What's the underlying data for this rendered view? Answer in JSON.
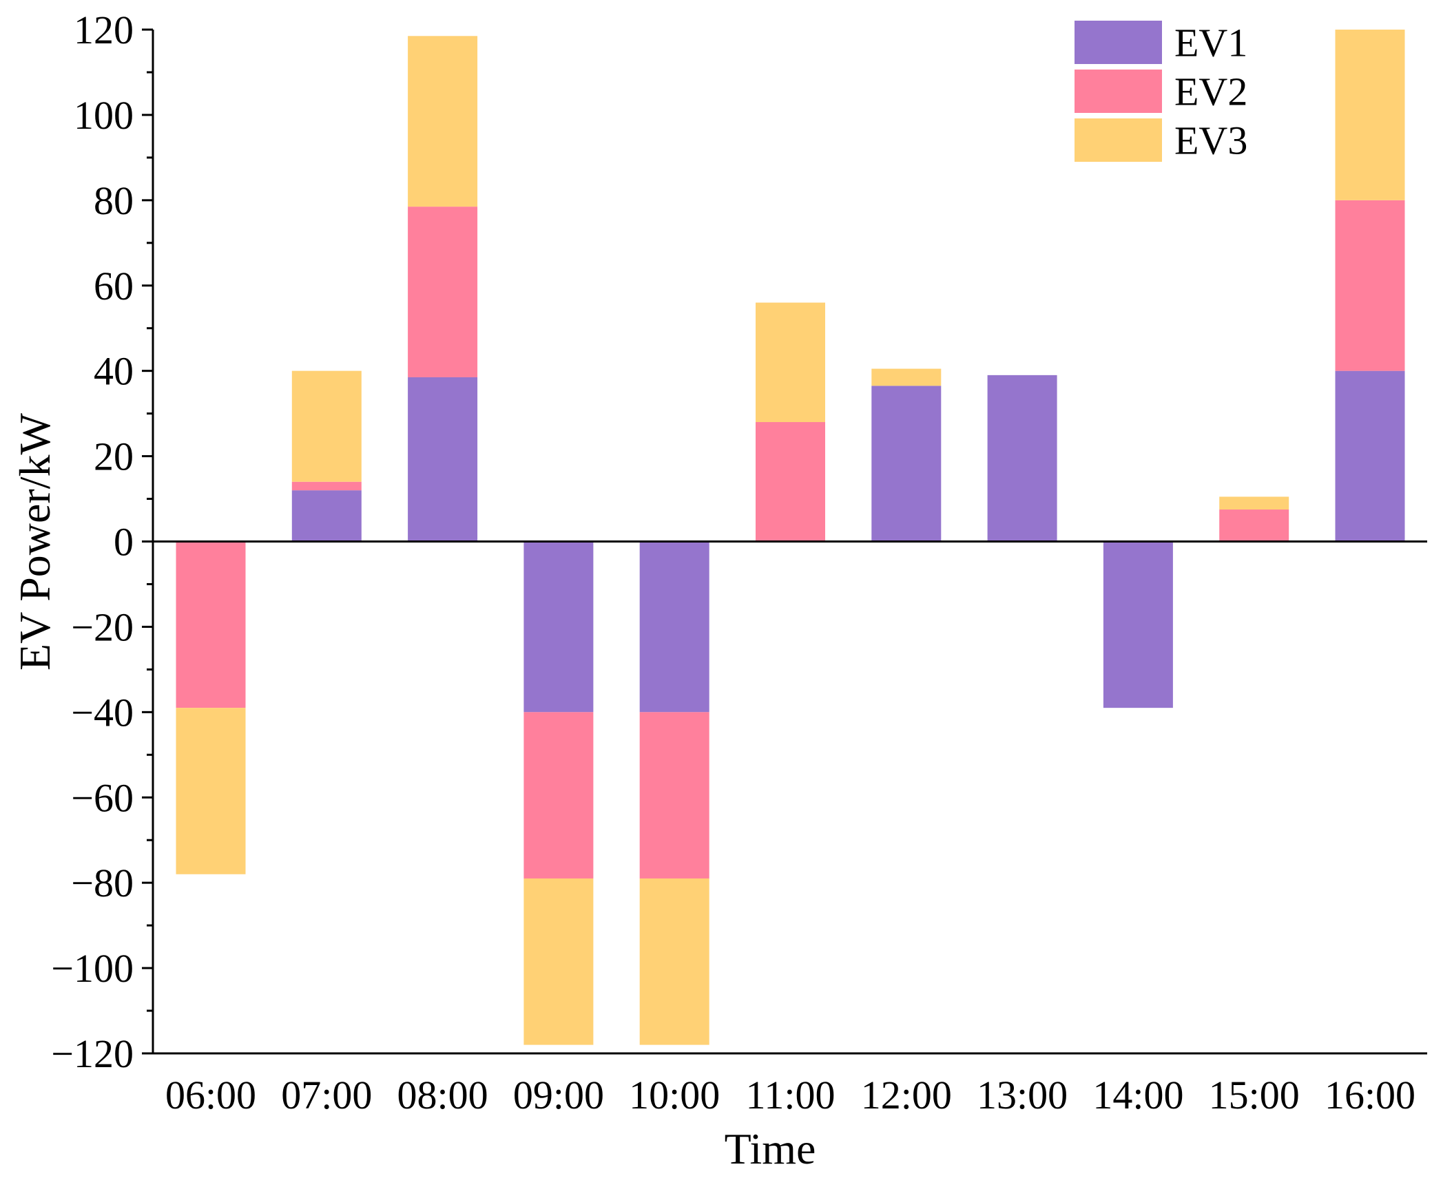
{
  "chart_data": {
    "type": "bar",
    "stacked": true,
    "title": "",
    "xlabel": "Time",
    "ylabel": "EV Power/kW",
    "ylim": [
      -120,
      120
    ],
    "yticks": [
      "120",
      "100",
      "80",
      "60",
      "40",
      "20",
      "0",
      "−20",
      "−40",
      "−60",
      "−80",
      "−100",
      "−120"
    ],
    "ytick_values": [
      120,
      100,
      80,
      60,
      40,
      20,
      0,
      -20,
      -40,
      -60,
      -80,
      -100,
      -120
    ],
    "categories": [
      "06:00",
      "07:00",
      "08:00",
      "09:00",
      "10:00",
      "11:00",
      "12:00",
      "13:00",
      "14:00",
      "15:00",
      "16:00"
    ],
    "series": [
      {
        "name": "EV1",
        "color": "#9575cd",
        "values": [
          0,
          12,
          38.5,
          -40,
          -40,
          0,
          36.5,
          39,
          -39,
          0,
          40
        ]
      },
      {
        "name": "EV2",
        "color": "#ff809c",
        "values": [
          -39,
          2,
          40,
          -39,
          -39,
          28,
          0,
          0,
          0,
          7.5,
          40
        ]
      },
      {
        "name": "EV3",
        "color": "#ffd175",
        "values": [
          -39,
          26,
          40,
          -39,
          -39,
          28,
          4,
          0,
          0,
          3,
          40
        ]
      }
    ],
    "legend_position": "top-right",
    "grid": false
  }
}
